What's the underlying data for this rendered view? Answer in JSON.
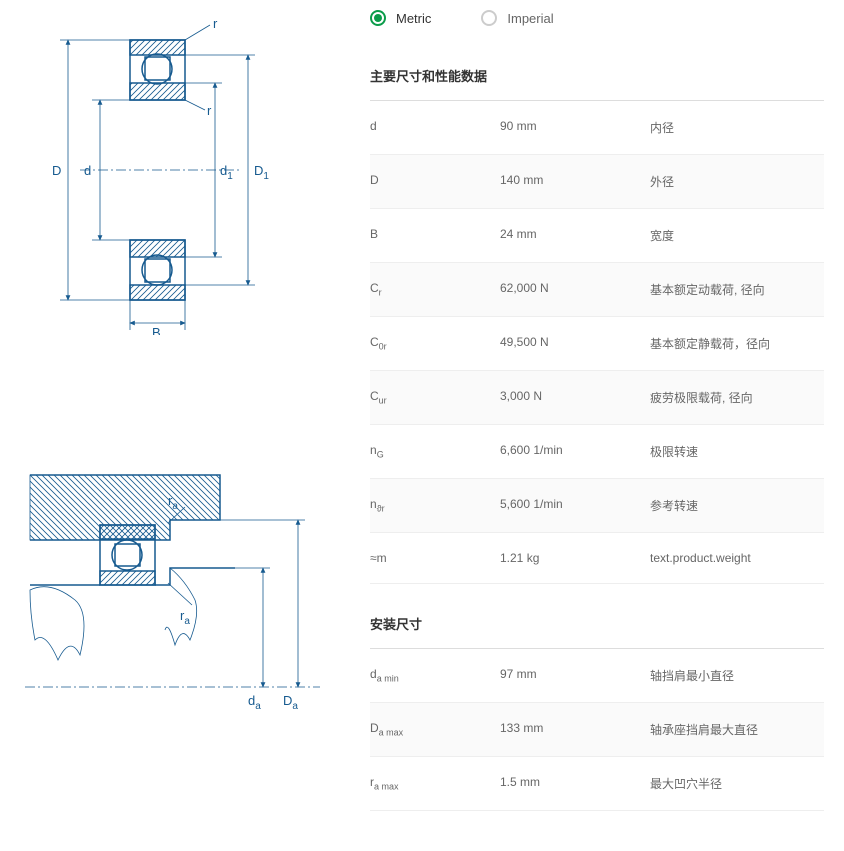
{
  "units": {
    "metric": "Metric",
    "imperial": "Imperial",
    "selected": "metric"
  },
  "section1": {
    "title": "主要尺寸和性能数据",
    "rows": [
      {
        "sym": "d",
        "val": "90 mm",
        "desc": "内径"
      },
      {
        "sym": "D",
        "val": "140 mm",
        "desc": "外径"
      },
      {
        "sym": "B",
        "val": "24 mm",
        "desc": "宽度"
      },
      {
        "sym": "C<sub>r</sub>",
        "val": "62,000 N",
        "desc": "基本额定动载荷, 径向"
      },
      {
        "sym": "C<sub>0r</sub>",
        "val": "49,500 N",
        "desc": "基本额定静载荷，径向"
      },
      {
        "sym": "C<sub>ur</sub>",
        "val": "3,000 N",
        "desc": "疲劳极限载荷, 径向"
      },
      {
        "sym": "n<sub>G</sub>",
        "val": "6,600 1/min",
        "desc": "极限转速"
      },
      {
        "sym": "n<sub>ϑr</sub>",
        "val": "5,600 1/min",
        "desc": "参考转速"
      },
      {
        "sym": "≈m",
        "val": "1.21 kg",
        "desc": "text.product.weight"
      }
    ]
  },
  "section2": {
    "title": "安装尺寸",
    "rows": [
      {
        "sym": "d<sub>a min</sub>",
        "val": "97 mm",
        "desc": "轴挡肩最小直径"
      },
      {
        "sym": "D<sub>a max</sub>",
        "val": "133 mm",
        "desc": "轴承座挡肩最大直径"
      },
      {
        "sym": "r<sub>a max</sub>",
        "val": "1.5 mm",
        "desc": "最大凹穴半径"
      }
    ]
  },
  "diag1_labels": {
    "r1": "r",
    "r2": "r",
    "D": "D",
    "d": "d",
    "d1": "d",
    "d1sub": "1",
    "D1": "D",
    "D1sub": "1",
    "B": "B"
  },
  "diag2_labels": {
    "ra1": "r",
    "ra1sub": "a",
    "ra2": "r",
    "ra2sub": "a",
    "da": "d",
    "dasub": "a",
    "Da": "D",
    "Dasub": "a"
  },
  "colors": {
    "line": "#165a8f",
    "accent": "#0b9c4a",
    "text": "#666",
    "border": "#ddd"
  }
}
